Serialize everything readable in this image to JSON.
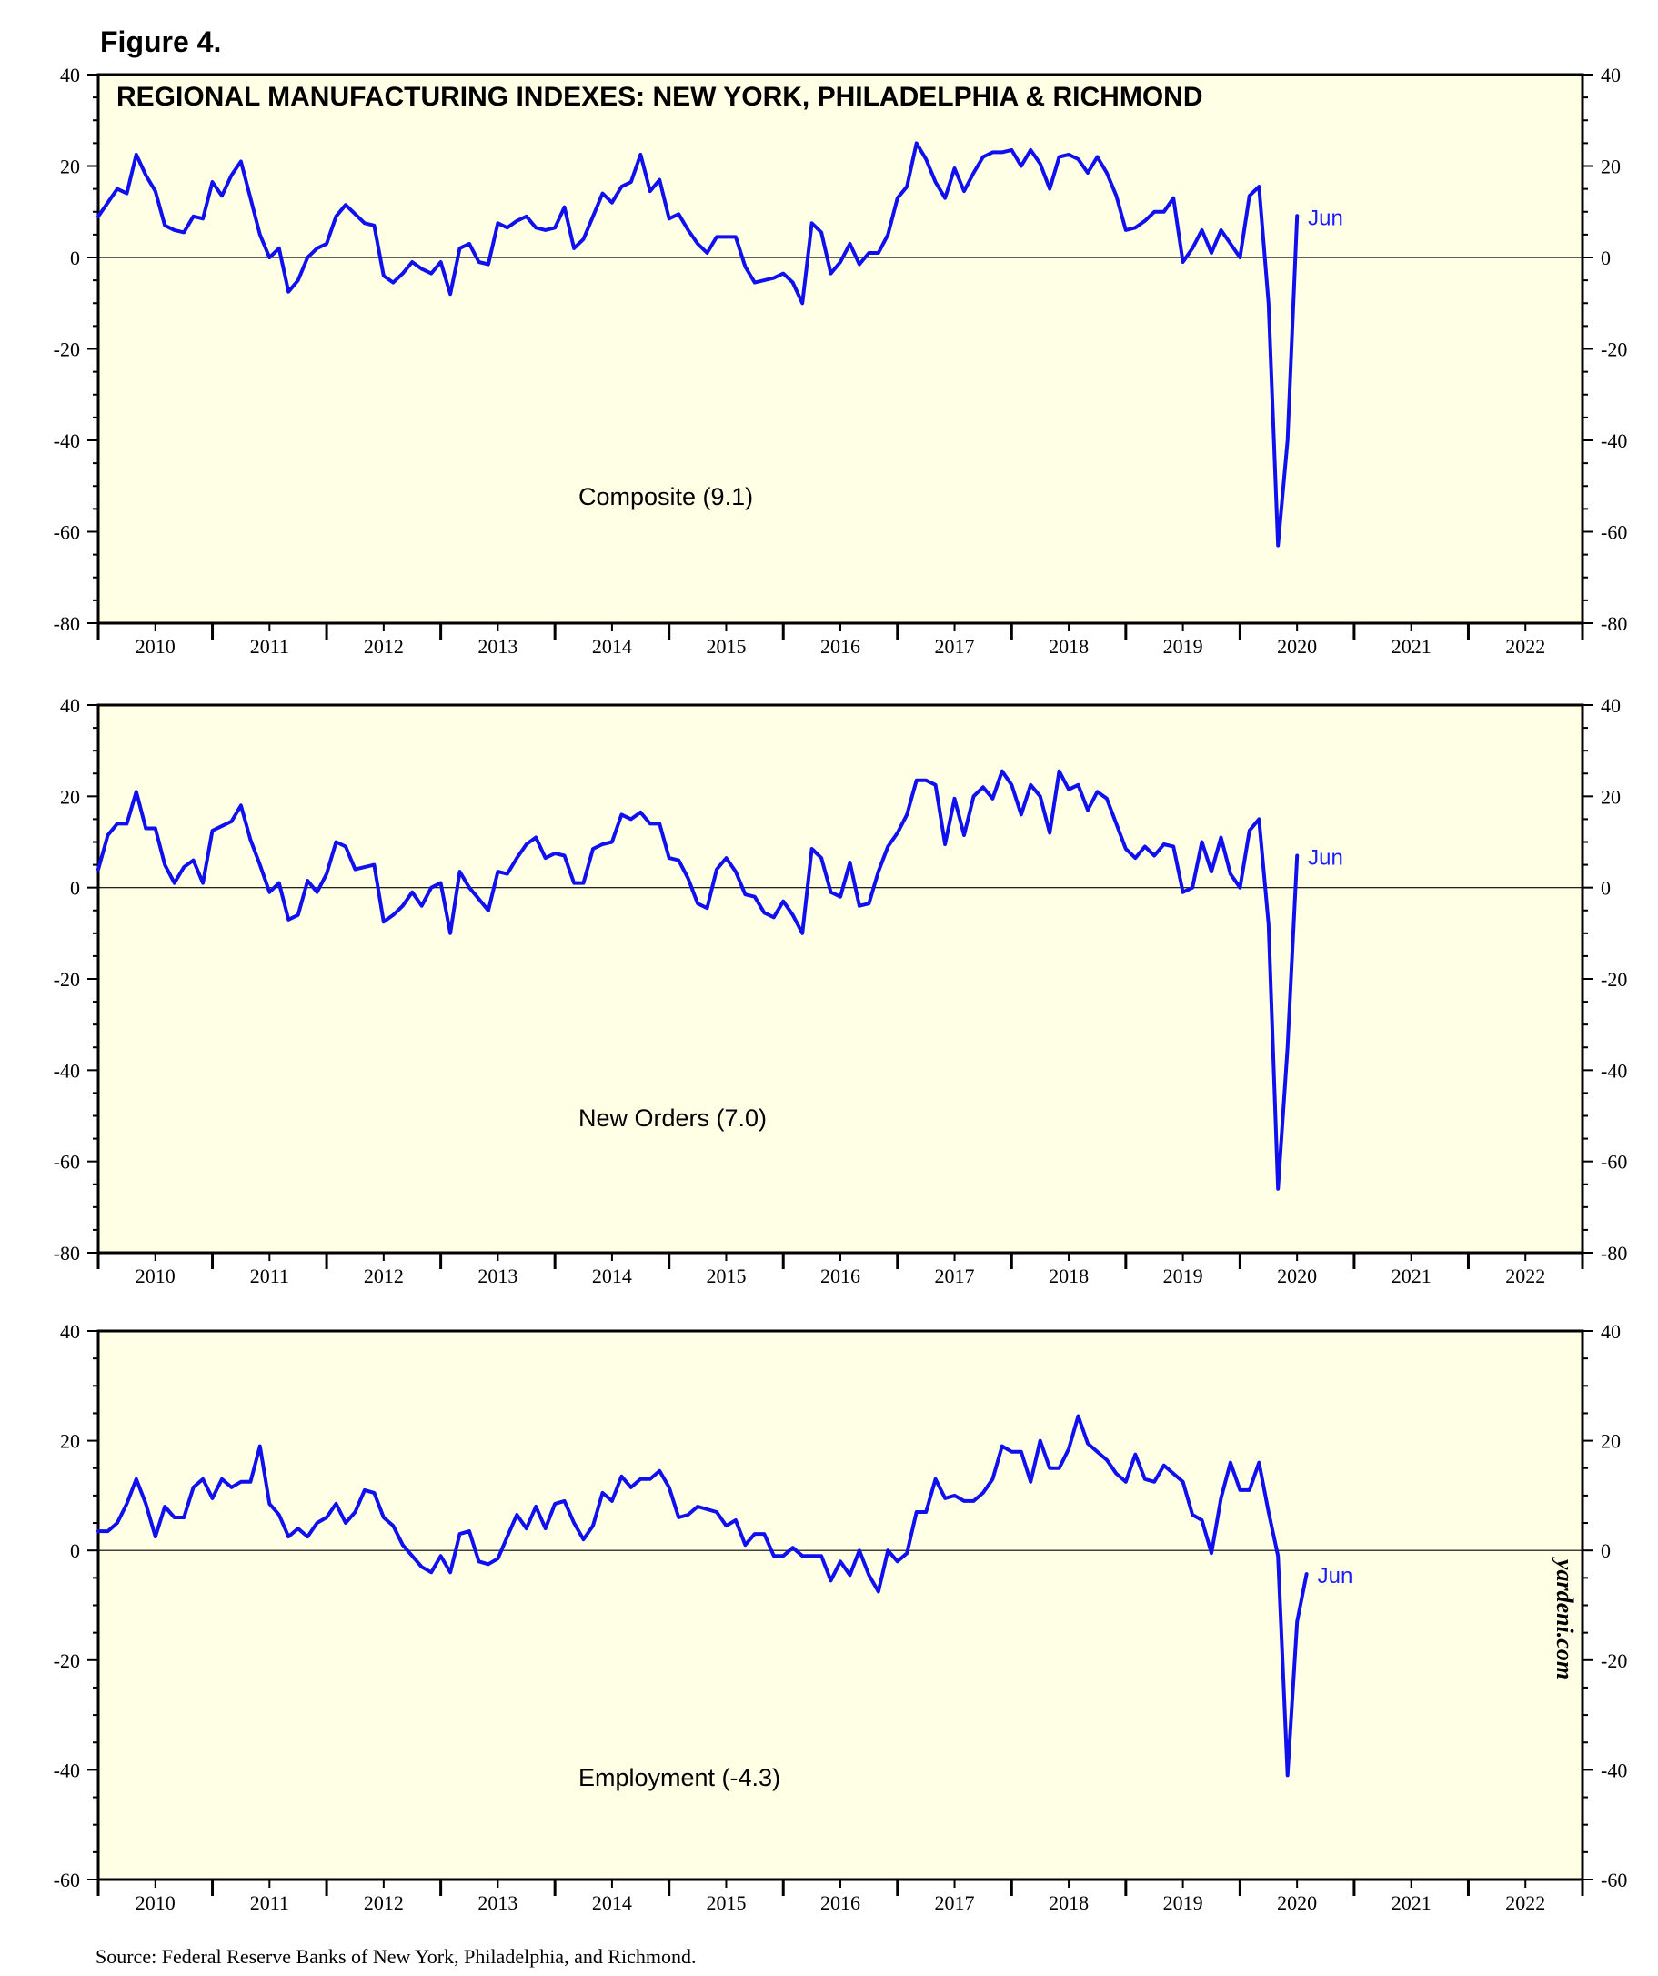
{
  "figure_label": "Figure 4.",
  "source": "Source: Federal Reserve Banks of New York, Philadelphia, and Richmond.",
  "watermark": "yardeni.com",
  "colors": {
    "plot_bg": "#ffffe6",
    "line": "#1010ee",
    "axis": "#000000",
    "jun": "#1a1aff"
  },
  "chart_data": [
    {
      "type": "line",
      "title": "REGIONAL MANUFACTURING INDEXES: NEW YORK, PHILADELPHIA & RICHMOND",
      "label": "Composite (9.1)",
      "end_label": "Jun",
      "ylim": [
        -80,
        40
      ],
      "yticks": [
        -80,
        -60,
        -40,
        -20,
        0,
        20,
        40
      ],
      "xlim": [
        2010,
        2023
      ],
      "x_tick_labels": [
        "2010",
        "2011",
        "2012",
        "2013",
        "2014",
        "2015",
        "2016",
        "2017",
        "2018",
        "2019",
        "2020",
        "2021",
        "2022"
      ],
      "start": "2010-01",
      "frequency": "monthly",
      "values": [
        9,
        12,
        15,
        14,
        22.5,
        18,
        14.5,
        7,
        6,
        5.5,
        9,
        8.5,
        16.5,
        13.5,
        18,
        21,
        13,
        5,
        0,
        2,
        -7.5,
        -5,
        0,
        2,
        3,
        9,
        11.5,
        9.5,
        7.5,
        7,
        -4,
        -5.5,
        -3.5,
        -1,
        -2.5,
        -3.5,
        -1,
        -8,
        2,
        3,
        -1,
        -1.5,
        7.5,
        6.5,
        8,
        9,
        6.5,
        6,
        6.5,
        11,
        2,
        4,
        9,
        14,
        12,
        15.5,
        16.5,
        22.5,
        14.5,
        17,
        8.5,
        9.5,
        6,
        3,
        1,
        4.5,
        4.5,
        4.5,
        -2,
        -5.5,
        -5,
        -4.5,
        -3.5,
        -5.5,
        -10,
        7.5,
        5.5,
        -3.5,
        -1,
        3,
        -1.5,
        1,
        1,
        5,
        13,
        15.5,
        25,
        21.5,
        16.5,
        13,
        19.5,
        14.5,
        18.5,
        22,
        23,
        23,
        23.5,
        20,
        23.5,
        20.5,
        15,
        22,
        22.5,
        21.5,
        18.5,
        22,
        18.5,
        13.5,
        6,
        6.5,
        8,
        10,
        10,
        13,
        -1,
        2,
        6,
        1,
        6,
        3,
        0,
        13.5,
        15.5,
        -10,
        -63,
        -40,
        9.1
      ]
    },
    {
      "type": "line",
      "label": "New Orders (7.0)",
      "end_label": "Jun",
      "ylim": [
        -80,
        40
      ],
      "yticks": [
        -80,
        -60,
        -40,
        -20,
        0,
        20,
        40
      ],
      "xlim": [
        2010,
        2023
      ],
      "x_tick_labels": [
        "2010",
        "2011",
        "2012",
        "2013",
        "2014",
        "2015",
        "2016",
        "2017",
        "2018",
        "2019",
        "2020",
        "2021",
        "2022"
      ],
      "start": "2010-01",
      "frequency": "monthly",
      "values": [
        4,
        11.5,
        14,
        14,
        21,
        13,
        13,
        5,
        1,
        4.5,
        6,
        1,
        12.5,
        13.5,
        14.5,
        18,
        10.5,
        5,
        -1,
        1,
        -7,
        -6,
        1.5,
        -1,
        3,
        10,
        9,
        4,
        4.5,
        5,
        -7.5,
        -6,
        -4,
        -1,
        -4,
        0,
        1,
        -10,
        3.5,
        0,
        -2.5,
        -5,
        3.5,
        3,
        6.5,
        9.5,
        11,
        6.5,
        7.5,
        7,
        1,
        1,
        8.5,
        9.5,
        10,
        16,
        15,
        16.5,
        14,
        14,
        6.5,
        6,
        2,
        -3.5,
        -4.5,
        4,
        6.5,
        3.5,
        -1.5,
        -2,
        -5.5,
        -6.5,
        -3,
        -6,
        -10,
        8.5,
        6.5,
        -1,
        -2,
        5.5,
        -4,
        -3.5,
        3.5,
        9,
        12,
        16,
        23.5,
        23.5,
        22.5,
        9.5,
        19.5,
        11.5,
        20,
        22,
        19.5,
        25.5,
        22.5,
        16,
        22.5,
        20,
        12,
        25.5,
        21.5,
        22.5,
        17,
        21,
        19.5,
        14,
        8.5,
        6.5,
        9,
        7,
        9.5,
        9,
        -1,
        0,
        10,
        3.5,
        11,
        3,
        0,
        12.5,
        15,
        -8,
        -66,
        -35,
        7.0
      ]
    },
    {
      "type": "line",
      "label": "Employment (-4.3)",
      "end_label": "Jun",
      "ylim": [
        -60,
        40
      ],
      "yticks": [
        -60,
        -40,
        -20,
        0,
        20,
        40
      ],
      "xlim": [
        2010,
        2023
      ],
      "x_tick_labels": [
        "2010",
        "2011",
        "2012",
        "2013",
        "2014",
        "2015",
        "2016",
        "2017",
        "2018",
        "2019",
        "2020",
        "2021",
        "2022"
      ],
      "start": "2010-01",
      "frequency": "monthly",
      "values": [
        3.5,
        3.5,
        5,
        8.5,
        13,
        8.5,
        2.5,
        8,
        6,
        6,
        11.5,
        13,
        9.5,
        13,
        11.5,
        12.5,
        12.5,
        19,
        8.5,
        6.5,
        2.5,
        4,
        2.5,
        5,
        6,
        8.5,
        5,
        7,
        11,
        10.5,
        6,
        4.5,
        1,
        -1,
        -3,
        -4,
        -1,
        -4,
        3,
        3.5,
        -2,
        -2.5,
        -1.5,
        2.5,
        6.5,
        4,
        8,
        4,
        8.5,
        9,
        5,
        2,
        4.5,
        10.5,
        9,
        13.5,
        11.5,
        13,
        13,
        14.5,
        11.5,
        6,
        6.5,
        8,
        7.5,
        7,
        4.5,
        5.5,
        1,
        3,
        3,
        -1,
        -1,
        0.5,
        -1,
        -1,
        -1,
        -5.5,
        -2,
        -4.5,
        0,
        -4.5,
        -7.5,
        0,
        -2,
        -0.5,
        7,
        7,
        13,
        9.5,
        10,
        9,
        9,
        10.5,
        13,
        19,
        18,
        18,
        12.5,
        20,
        15,
        15,
        18.5,
        24.5,
        19.5,
        18,
        16.5,
        14,
        12.5,
        17.5,
        13,
        12.5,
        15.5,
        14,
        12.5,
        6.5,
        5.5,
        -0.5,
        9.5,
        16,
        11,
        11,
        16,
        7,
        -1,
        -41,
        -13,
        -4.3
      ]
    }
  ]
}
